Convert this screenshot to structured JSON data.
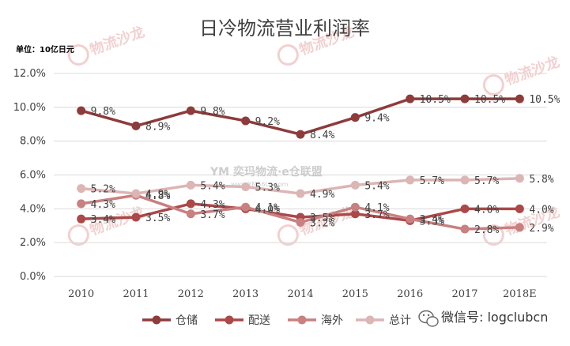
{
  "chart_data": {
    "type": "line",
    "title": "日冷物流营业利润率",
    "unit_label": "单位：10亿日元",
    "categories": [
      "2010",
      "2011",
      "2012",
      "2013",
      "2014",
      "2015",
      "2016",
      "2017",
      "2018E"
    ],
    "y_ticks": [
      "0.0%",
      "2.0%",
      "4.0%",
      "6.0%",
      "8.0%",
      "10.0%",
      "12.0%"
    ],
    "ylim": [
      0,
      12
    ],
    "grid": true,
    "legend_position": "bottom",
    "series": [
      {
        "name": "仓储",
        "color": "#8e3b3b",
        "values": [
          9.8,
          8.9,
          9.8,
          9.2,
          8.4,
          9.4,
          10.5,
          10.5,
          10.5
        ],
        "labels": [
          "9.8%",
          "8.9%",
          "9.8%",
          "9.2%",
          "8.4%",
          "9.4%",
          "10.5%",
          "10.5%",
          "10.5%"
        ]
      },
      {
        "name": "配送",
        "color": "#ac4848",
        "values": [
          3.4,
          3.5,
          4.3,
          4.0,
          3.5,
          3.7,
          3.3,
          4.0,
          4.0
        ],
        "labels": [
          "3.4%",
          "3.5%",
          "4.3%",
          "4.0%",
          "3.5%",
          "3.7%",
          "3.3%",
          "4.0%",
          "4.0%"
        ]
      },
      {
        "name": "海外",
        "color": "#c98080",
        "values": [
          4.3,
          4.8,
          3.7,
          4.1,
          3.2,
          4.1,
          3.4,
          2.8,
          2.9
        ],
        "labels": [
          "4.3%",
          "4.8%",
          "3.7%",
          "4.1%",
          "3.2%",
          "4.1%",
          "3.4%",
          "2.8%",
          "2.9%"
        ]
      },
      {
        "name": "总计",
        "color": "#dcb5b5",
        "values": [
          5.2,
          4.9,
          5.4,
          5.3,
          4.9,
          5.4,
          5.7,
          5.7,
          5.8
        ],
        "labels": [
          "5.2%",
          "4.9%",
          "5.4%",
          "5.3%",
          "4.9%",
          "5.4%",
          "5.7%",
          "5.7%",
          "5.8%"
        ]
      }
    ]
  },
  "watermarks": {
    "brand": "物流沙龙",
    "center": "YM 奕玛物流·e仓联盟",
    "center_url": "www.YM56Lu.com",
    "wechat": "微信号: logclubcn"
  }
}
